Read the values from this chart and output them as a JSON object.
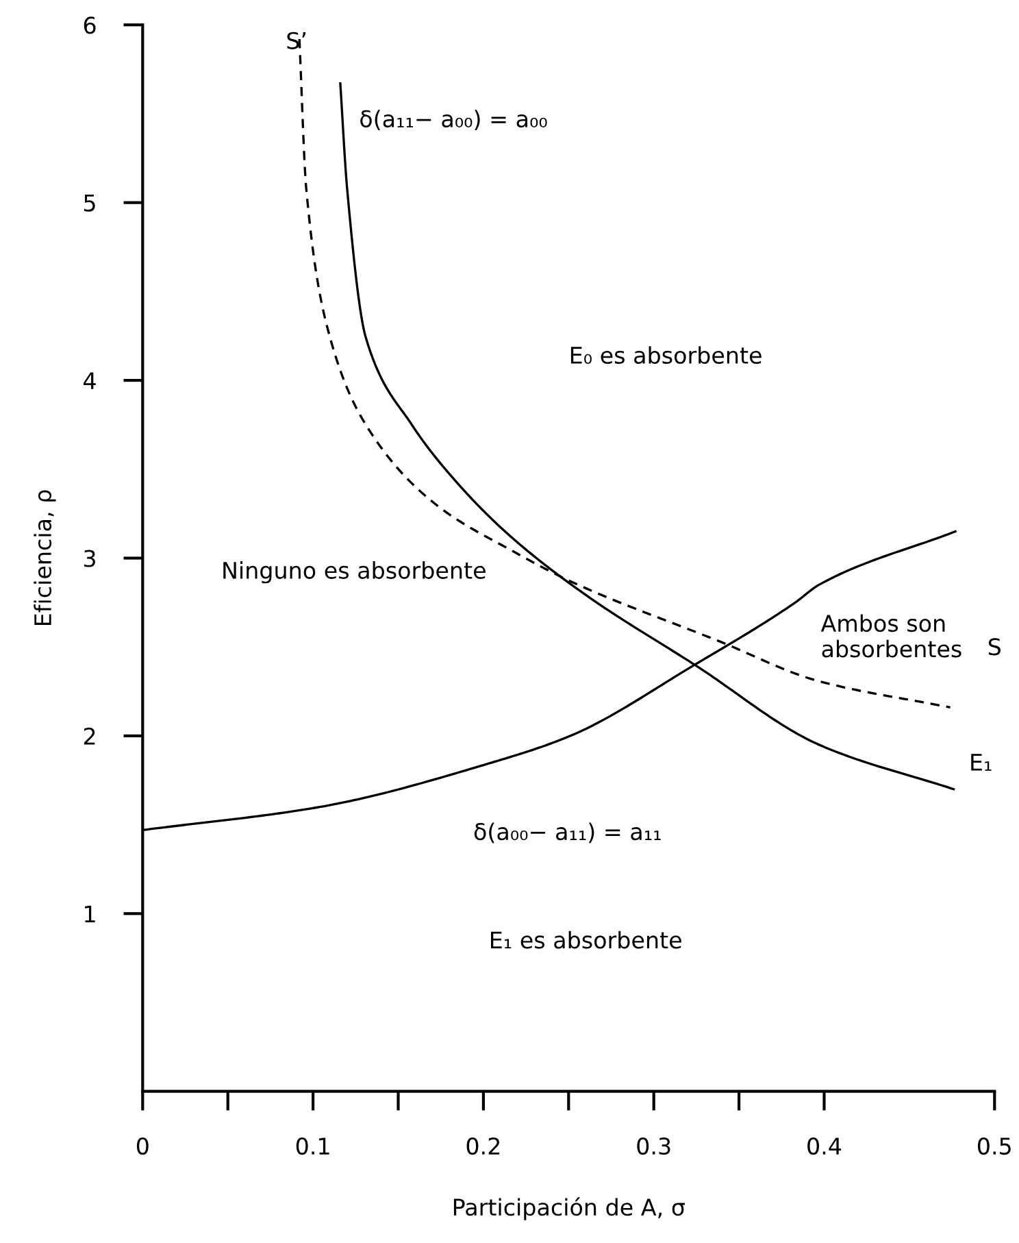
{
  "chart_data": {
    "type": "line",
    "xlabel": "Participación de A, σ",
    "ylabel": "Eficiencia, ρ",
    "xlim": [
      0,
      0.5
    ],
    "ylim": [
      0,
      6
    ],
    "xticks": [
      0,
      {
        "value": 0.05,
        "label": null
      },
      0.1,
      {
        "value": 0.15,
        "label": null
      },
      0.2,
      {
        "value": 0.25,
        "label": null
      },
      0.3,
      {
        "value": 0.35,
        "label": null
      },
      0.4,
      0.5
    ],
    "yticks": [
      1,
      2,
      3,
      4,
      5,
      6
    ],
    "grid": false,
    "legend": false,
    "series": [
      {
        "color": "#000000",
        "line_style": "solid",
        "x": [
          0,
          0.104,
          0.205,
          0.251,
          0.324,
          0.383,
          0.397,
          0.477
        ],
        "values": [
          1.47,
          1.6,
          1.85,
          2.0,
          2.4,
          2.75,
          2.85,
          3.15
        ]
      },
      {
        "color": "#000000",
        "line_style": "solid",
        "x": [
          0.116,
          0.12,
          0.131,
          0.158,
          0.184,
          0.215,
          0.259,
          0.324,
          0.397,
          0.476
        ],
        "values": [
          5.67,
          5.08,
          4.24,
          3.75,
          3.43,
          3.13,
          2.8,
          2.4,
          1.95,
          1.7
        ]
      },
      {
        "color": "#000000",
        "line_style": "dashed",
        "x": [
          0.092,
          0.096,
          0.11,
          0.131,
          0.171,
          0.219,
          0.251,
          0.339,
          0.396,
          0.474
        ],
        "values": [
          5.92,
          5.08,
          4.24,
          3.75,
          3.31,
          3.03,
          2.87,
          2.53,
          2.31,
          2.16
        ]
      }
    ],
    "annotations": [
      "S’",
      "δ(a₁₁− a₀₀) = a₀₀",
      "S",
      "E₁",
      "δ(a₀₀− a₁₁) = a₁₁",
      "Ambos son\nabsorbentes",
      "E₀ es absorbente",
      "Ninguno es absorbente",
      "E₁ es absorbente"
    ]
  }
}
